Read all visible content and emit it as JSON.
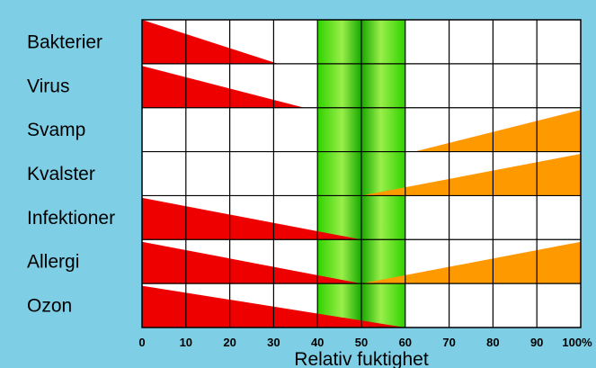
{
  "chart_data": {
    "type": "heatmap",
    "title": "",
    "xlabel": "Relativ fuktighet",
    "ylabel": "",
    "xlim": [
      0,
      100
    ],
    "x_ticks": [
      "0",
      "10",
      "20",
      "30",
      "40",
      "50",
      "60",
      "70",
      "80",
      "90",
      "100%"
    ],
    "optimal_range": {
      "from": 40,
      "to": 60,
      "color": "#22cc00"
    },
    "grid": true,
    "colors": {
      "decreasing": "#ee0000",
      "increasing": "#ff9900",
      "background": "#7ecfe6"
    },
    "rows": [
      {
        "label": "Bakterier",
        "decreasing": {
          "from": 0,
          "to": 31,
          "max": 1.0
        },
        "increasing": null
      },
      {
        "label": "Virus",
        "decreasing": {
          "from": 0,
          "to": 37,
          "max": 0.95
        },
        "increasing": null
      },
      {
        "label": "Svamp",
        "decreasing": null,
        "increasing": {
          "from": 62,
          "to": 100,
          "max": 0.95
        }
      },
      {
        "label": "Kvalster",
        "decreasing": null,
        "increasing": {
          "from": 50,
          "to": 100,
          "max": 0.95
        }
      },
      {
        "label": "Infektioner",
        "decreasing": {
          "from": 0,
          "to": 50,
          "max": 0.95
        },
        "increasing": null
      },
      {
        "label": "Allergi",
        "decreasing": {
          "from": 0,
          "to": 50,
          "max": 0.95
        },
        "increasing": {
          "from": 50,
          "to": 100,
          "max": 0.95
        }
      },
      {
        "label": "Ozon",
        "decreasing": {
          "from": 0,
          "to": 60,
          "max": 0.95
        },
        "increasing": null
      }
    ]
  }
}
